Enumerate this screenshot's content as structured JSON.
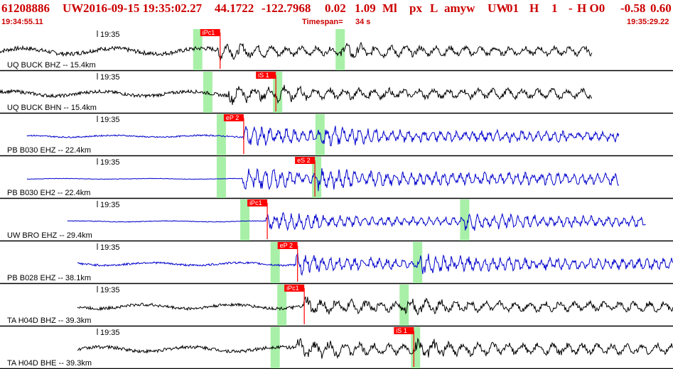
{
  "header": {
    "event_id": "61208886",
    "network": "UW",
    "datetime": "2016-09-15 19:35:02.27",
    "lat": "44.1722",
    "lon": "-122.7968",
    "depth": "0.02",
    "magnitude": "1.09",
    "mag_type": "Ml",
    "flag1": "px",
    "flag2": "L",
    "analyst": "amyw",
    "origin_net": "UW",
    "version": "01",
    "f_h": "H",
    "f_1": "1",
    "f_dash": "-",
    "f_ho": "H O0",
    "v1": "-0.58",
    "v2": "0.60",
    "start_time": "19:34:55.11",
    "timespan_label": "Timespan=",
    "timespan_value": "34 s",
    "end_time": "19:35:29.22"
  },
  "colors": {
    "header_text": "#cc0000",
    "pick_box": "#ff0000",
    "window_band": "#a8f0a8",
    "trace_short_period": "#000000",
    "trace_broadband": "#0000cc"
  },
  "traces": [
    {
      "station_label": "UQ BUCK BHZ -- 15.4km",
      "tick_label": "19:35",
      "pick_label": "iPc1",
      "color": "black",
      "amp": 0.55,
      "noise": 0.25,
      "start": 0.0,
      "end": 0.88,
      "p": 0.325,
      "s": 0.505
    },
    {
      "station_label": "UQ BUCK BHN -- 15.4km",
      "tick_label": "19:35",
      "pick_label": "iS 1",
      "color": "black",
      "amp": 0.6,
      "noise": 0.2,
      "start": 0.0,
      "end": 0.88,
      "p": 0.34,
      "s": 0.412
    },
    {
      "station_label": "PB B030 EHZ -- 22.4km",
      "tick_label": "19:35",
      "pick_label": "eP 2",
      "color": "blue",
      "amp": 0.65,
      "noise": 0.08,
      "start": 0.04,
      "end": 0.92,
      "p": 0.36,
      "s": 0.475
    },
    {
      "station_label": "PB B030 EH2 -- 22.4km",
      "tick_label": "19:35",
      "pick_label": "eS 2",
      "color": "blue",
      "amp": 0.7,
      "noise": 0.03,
      "start": 0.04,
      "end": 0.92,
      "p": 0.36,
      "s": 0.47
    },
    {
      "station_label": "UW BRO EHZ -- 29.4km",
      "tick_label": "19:35",
      "pick_label": "iPc1",
      "color": "blue",
      "amp": 0.6,
      "noise": 0.04,
      "start": 0.1,
      "end": 0.96,
      "p": 0.395,
      "s": 0.69
    },
    {
      "station_label": "PB B028 EHZ -- 38.1km",
      "tick_label": "19:35",
      "pick_label": "eP 2",
      "color": "blue",
      "amp": 0.65,
      "noise": 0.12,
      "start": 0.115,
      "end": 1.0,
      "p": 0.44,
      "s": 0.62
    },
    {
      "station_label": "TA H04D BHZ -- 39.3km",
      "tick_label": "19:35",
      "pick_label": "iPc1",
      "color": "black",
      "amp": 0.6,
      "noise": 0.18,
      "start": 0.115,
      "end": 1.0,
      "p": 0.45,
      "s": 0.6
    },
    {
      "station_label": "TA H04D BHE -- 39.3km",
      "tick_label": "19:35",
      "pick_label": "iS 1",
      "color": "black",
      "amp": 0.65,
      "noise": 0.2,
      "start": 0.115,
      "end": 1.0,
      "p": 0.44,
      "s": 0.617
    }
  ]
}
